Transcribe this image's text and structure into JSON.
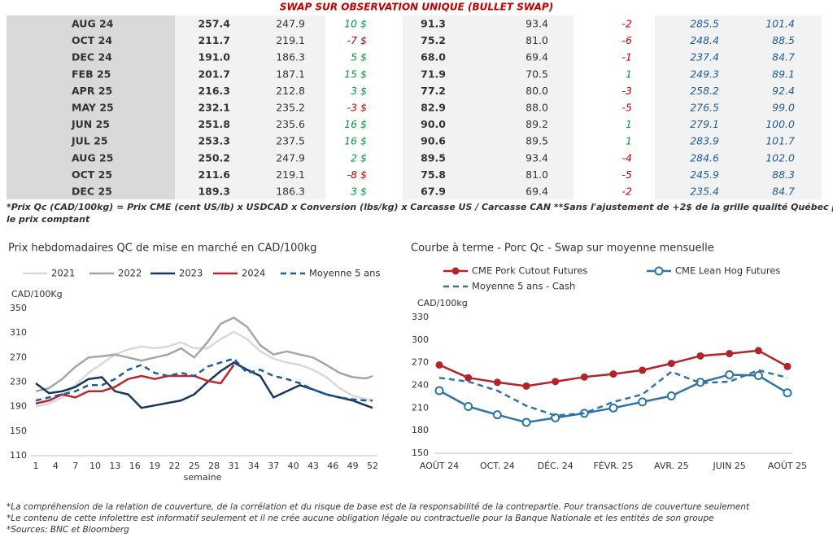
{
  "table": {
    "title": "SWAP SUR OBSERVATION UNIQUE (BULLET SWAP)",
    "rows": [
      [
        "AUG 24",
        "257.4",
        "247.9",
        "10 $",
        "91.3",
        "93.4",
        "-2",
        "285.5",
        "101.4"
      ],
      [
        "OCT 24",
        "211.7",
        "219.1",
        "-7 $",
        "75.2",
        "81.0",
        "-6",
        "248.4",
        "88.5"
      ],
      [
        "DEC 24",
        "191.0",
        "186.3",
        "5 $",
        "68.0",
        "69.4",
        "-1",
        "237.4",
        "84.7"
      ],
      [
        "FEB 25",
        "201.7",
        "187.1",
        "15 $",
        "71.9",
        "70.5",
        "1",
        "249.3",
        "89.1"
      ],
      [
        "APR 25",
        "216.3",
        "212.8",
        "3 $",
        "77.2",
        "80.0",
        "-3",
        "258.2",
        "92.4"
      ],
      [
        "MAY 25",
        "232.1",
        "235.2",
        "-3 $",
        "82.9",
        "88.0",
        "-5",
        "276.5",
        "99.0"
      ],
      [
        "JUN 25",
        "251.8",
        "235.6",
        "16 $",
        "90.0",
        "89.2",
        "1",
        "279.1",
        "100.0"
      ],
      [
        "JUL 25",
        "253.3",
        "237.5",
        "16 $",
        "90.6",
        "89.5",
        "1",
        "283.9",
        "101.7"
      ],
      [
        "AUG 25",
        "250.2",
        "247.9",
        "2 $",
        "89.5",
        "93.4",
        "-4",
        "284.6",
        "102.0"
      ],
      [
        "OCT 25",
        "211.6",
        "219.1",
        "-8 $",
        "75.8",
        "81.0",
        "-5",
        "245.9",
        "88.3"
      ],
      [
        "DEC 25",
        "189.3",
        "186.3",
        "3 $",
        "67.9",
        "69.4",
        "-2",
        "235.4",
        "84.7"
      ]
    ],
    "note": [
      "*Prix Qc (CAD/100kg) = Prix CME (cent US/lb) x USDCAD x Conversion (lbs/kg) x Carcasse US / Carcasse CAN **Sans l'ajustement de +2$ de la grille qualité Québec pour",
      "le prix comptant"
    ]
  },
  "chart_data": [
    {
      "type": "line",
      "title": "Prix hebdomadaires QC de mise en marché en CAD/100kg",
      "ylabel": "CAD/100Kg",
      "xlabel": "semaine",
      "x": [
        1,
        3,
        5,
        7,
        9,
        11,
        13,
        15,
        17,
        19,
        21,
        23,
        25,
        27,
        29,
        31,
        33,
        35,
        37,
        39,
        41,
        43,
        45,
        47,
        49,
        51,
        52
      ],
      "xlim": [
        1,
        52
      ],
      "xticks": [
        1,
        4,
        7,
        10,
        13,
        16,
        19,
        22,
        25,
        28,
        31,
        34,
        37,
        40,
        43,
        46,
        49,
        52
      ],
      "ylim": [
        110,
        350
      ],
      "yticks": [
        110,
        150,
        190,
        230,
        270,
        310,
        350
      ],
      "series": [
        {
          "name": "2021",
          "color": "#d9d9d9",
          "values": [
            190,
            195,
            205,
            225,
            245,
            260,
            275,
            283,
            288,
            285,
            288,
            295,
            285,
            285,
            300,
            312,
            300,
            280,
            268,
            262,
            258,
            250,
            238,
            220,
            208,
            202,
            200
          ]
        },
        {
          "name": "2022",
          "color": "#a6a6a6",
          "values": [
            215,
            220,
            235,
            255,
            270,
            272,
            275,
            270,
            265,
            270,
            275,
            285,
            270,
            295,
            325,
            335,
            320,
            290,
            275,
            280,
            275,
            270,
            258,
            245,
            238,
            236,
            240
          ]
        },
        {
          "name": "2023",
          "color": "#17375e",
          "values": [
            228,
            212,
            215,
            222,
            235,
            238,
            215,
            210,
            188,
            192,
            196,
            200,
            210,
            230,
            248,
            262,
            250,
            240,
            205,
            215,
            225,
            218,
            210,
            205,
            200,
            192,
            188
          ]
        },
        {
          "name": "2024",
          "color": "#c0272d",
          "values": [
            195,
            200,
            210,
            205,
            215,
            215,
            222,
            235,
            240,
            235,
            240,
            240,
            240,
            232,
            228,
            258,
            null,
            null,
            null,
            null,
            null,
            null,
            null,
            null,
            null,
            null,
            null
          ]
        },
        {
          "name": "Moyenne 5 ans",
          "color": "#1f5c99",
          "dash": true,
          "values": [
            200,
            205,
            210,
            215,
            225,
            225,
            235,
            250,
            258,
            245,
            240,
            245,
            240,
            255,
            262,
            268,
            245,
            250,
            240,
            235,
            228,
            218,
            210,
            205,
            202,
            200,
            200
          ]
        }
      ]
    },
    {
      "type": "line",
      "title": "Courbe à terme - Porc Qc - Swap sur moyenne mensuelle",
      "ylabel": "CAD/100kg",
      "categories": [
        "AOÛT 24",
        null,
        "OCT. 24",
        null,
        "DÉC. 24",
        null,
        "FÉVR. 25",
        null,
        "AVR. 25",
        null,
        "JUIN 25",
        null,
        "AOÛT 25"
      ],
      "ylim": [
        150,
        330
      ],
      "yticks": [
        150,
        180,
        210,
        240,
        270,
        300,
        330
      ],
      "series": [
        {
          "name": "CME Pork Cutout Futures",
          "color": "#b5232a",
          "marker": "circle",
          "values": [
            267,
            250,
            244,
            239,
            245,
            251,
            255,
            260,
            269,
            279,
            282,
            286,
            265
          ]
        },
        {
          "name": "CME Lean Hog Futures",
          "color": "#2e75a6",
          "marker": "open-circle",
          "values": [
            233,
            212,
            201,
            191,
            197,
            203,
            210,
            218,
            226,
            244,
            254,
            253,
            230
          ]
        },
        {
          "name": "Moyenne 5 ans - Cash",
          "color": "#2e75a6",
          "dash": true,
          "values": [
            250,
            245,
            233,
            213,
            200,
            203,
            218,
            228,
            258,
            243,
            245,
            260,
            250
          ]
        }
      ]
    }
  ],
  "footnotes": [
    "*La compréhension de la relation de couverture, de la corrélation et du risque de base est de la responsabilité de la contrepartie. Pour transactions de couverture seulement",
    "*Le contenu de cette infolettre est informatif seulement et il ne crée aucune obligation légale ou contractuelle pour la Banque Nationale et les entités de son groupe",
    "*Sources: BNC et Bloomberg"
  ]
}
